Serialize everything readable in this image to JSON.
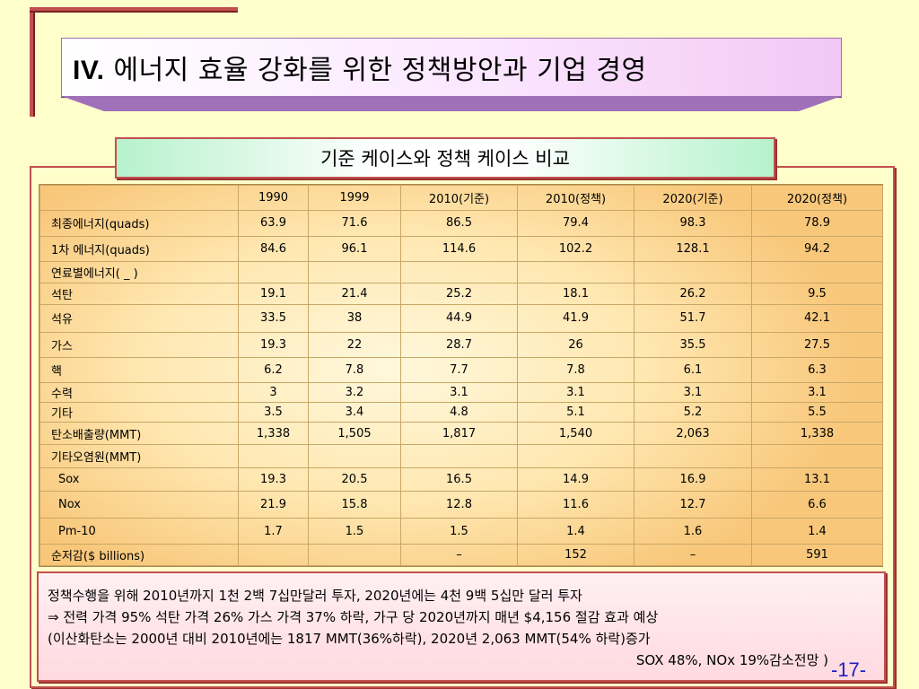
{
  "title": {
    "number": "IV.",
    "text": "에너지 효율 강화를 위한 정책방안과 기업 경영"
  },
  "subtitle": "기준 케이스와 정책 케이스 비교",
  "table": {
    "headers": [
      "",
      "1990",
      "1999",
      "2010(기준)",
      "2010(정책)",
      "2020(기준)",
      "2020(정책)"
    ],
    "rows": [
      [
        "최종에너지(quads)",
        "63.9",
        "71.6",
        "86.5",
        "79.4",
        "98.3",
        "78.9"
      ],
      [
        "1차 에너지(quads)",
        "84.6",
        "96.1",
        "114.6",
        "102.2",
        "128.1",
        "94.2"
      ],
      [
        "연료별에너지( _ )",
        "",
        "",
        "",
        "",
        "",
        ""
      ],
      [
        "석탄",
        "19.1",
        "21.4",
        "25.2",
        "18.1",
        "26.2",
        "9.5"
      ],
      [
        "석유",
        "33.5",
        "38",
        "44.9",
        "41.9",
        "51.7",
        "42.1"
      ],
      [
        "가스",
        "19.3",
        "22",
        "28.7",
        "26",
        "35.5",
        "27.5"
      ],
      [
        "핵",
        "6.2",
        "7.8",
        "7.7",
        "7.8",
        "6.1",
        "6.3"
      ],
      [
        "수력",
        "3",
        "3.2",
        "3.1",
        "3.1",
        "3.1",
        "3.1"
      ],
      [
        "기타",
        "3.5",
        "3.4",
        "4.8",
        "5.1",
        "5.2",
        "5.5"
      ],
      [
        "탄소배출량(MMT)",
        "1,338",
        "1,505",
        "1,817",
        "1,540",
        "2,063",
        "1,338"
      ],
      [
        "기타오염원(MMT)",
        "",
        "",
        "",
        "",
        "",
        ""
      ],
      [
        "Sox",
        "19.3",
        "20.5",
        "16.5",
        "14.9",
        "16.9",
        "13.1"
      ],
      [
        "Nox",
        "21.9",
        "15.8",
        "12.8",
        "11.6",
        "12.7",
        "6.6"
      ],
      [
        "Pm-10",
        "1.7",
        "1.5",
        "1.5",
        "1.4",
        "1.6",
        "1.4"
      ],
      [
        "순저감($ billions)",
        "",
        "",
        "–",
        "152",
        "–",
        "591"
      ]
    ]
  },
  "notes": {
    "line1": "정책수행을 위해 2010년까지 1천 2백 7십만달러 투자, 2020년에는  4천 9백 5십만 달러 투자",
    "line2": "⇒ 전력 가격 95% 석탄 가격 26% 가스 가격 37% 하락, 가구 당 2020년까지 매년 $4,156 절감 효과 예상",
    "line3": "(이산화탄소는 2000년 대비 2010년에는 1817 MMT(36%하락), 2020년 2,063 MMT(54% 하락)증가",
    "line4": "SOX 48%, NOx 19%감소전망 )"
  },
  "page_number": "-17-"
}
